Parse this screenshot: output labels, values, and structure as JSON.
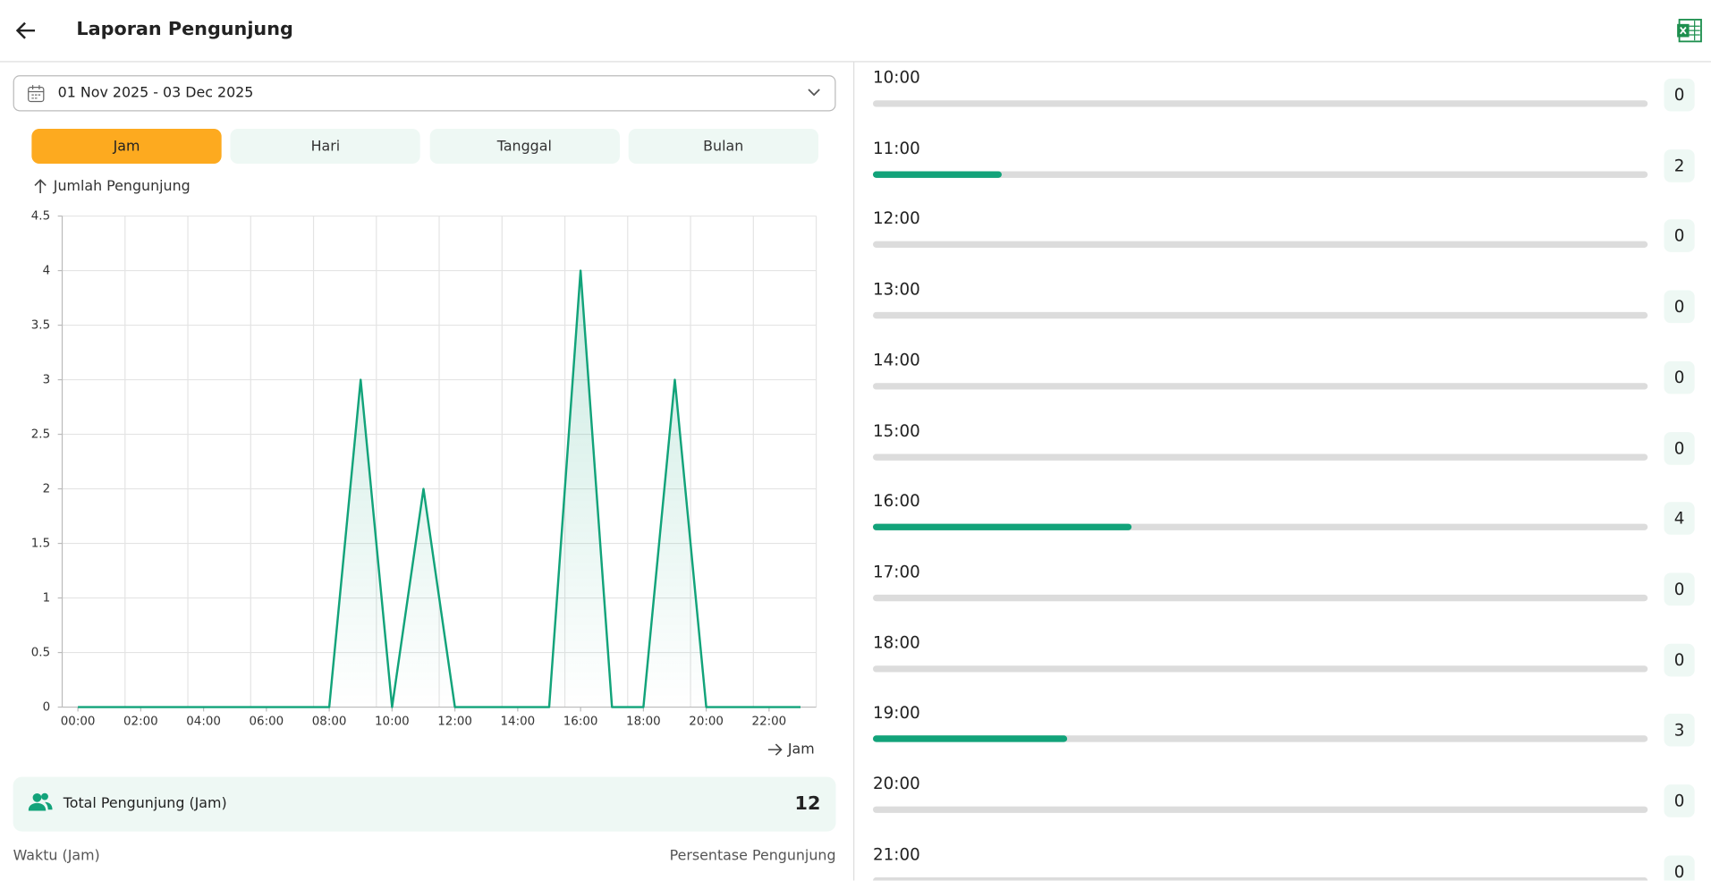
{
  "header": {
    "title": "Laporan Pengunjung"
  },
  "date_range": "01 Nov 2025 - 03 Dec 2025",
  "tabs": [
    {
      "label": "Jam",
      "active": true
    },
    {
      "label": "Hari",
      "active": false
    },
    {
      "label": "Tanggal",
      "active": false
    },
    {
      "label": "Bulan",
      "active": false
    }
  ],
  "chart_data": {
    "type": "line",
    "y_axis_label": "Jumlah Pengunjung",
    "x_axis_label": "Jam",
    "categories": [
      "00:00",
      null,
      "02:00",
      null,
      "04:00",
      null,
      "06:00",
      null,
      "08:00",
      null,
      "10:00",
      null,
      "12:00",
      null,
      "14:00",
      null,
      "16:00",
      null,
      "18:00",
      null,
      "20:00",
      null,
      "22:00",
      null
    ],
    "values": [
      0,
      0,
      0,
      0,
      0,
      0,
      0,
      0,
      0,
      3,
      0,
      2,
      0,
      0,
      0,
      0,
      4,
      0,
      0,
      3,
      0,
      0,
      0,
      0
    ],
    "color": "#12a37a",
    "ylim": [
      0,
      4.5
    ],
    "yticks": [
      0,
      0.5,
      1,
      1.5,
      2,
      2.5,
      3,
      3.5,
      4,
      4.5
    ],
    "grid": true
  },
  "total": {
    "label": "Total Pengunjung (Jam)",
    "value": 12
  },
  "list": {
    "column_left": "Waktu (Jam)",
    "column_right": "Persentase Pengunjung",
    "rows": [
      {
        "label": "10:00",
        "value": 0
      },
      {
        "label": "11:00",
        "value": 2
      },
      {
        "label": "12:00",
        "value": 0
      },
      {
        "label": "13:00",
        "value": 0
      },
      {
        "label": "14:00",
        "value": 0
      },
      {
        "label": "15:00",
        "value": 0
      },
      {
        "label": "16:00",
        "value": 4
      },
      {
        "label": "17:00",
        "value": 0
      },
      {
        "label": "18:00",
        "value": 0
      },
      {
        "label": "19:00",
        "value": 3
      },
      {
        "label": "20:00",
        "value": 0
      },
      {
        "label": "21:00",
        "value": 0
      }
    ]
  }
}
